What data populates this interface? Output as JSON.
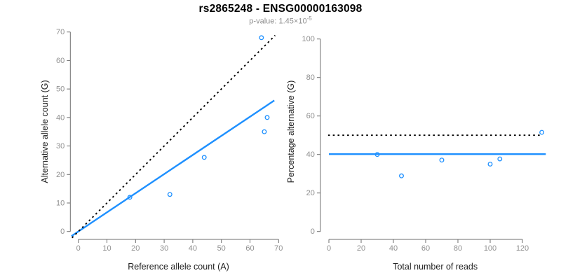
{
  "chart_data": {
    "type": "scatter",
    "title": "rs2865248 - ENSG00000163098",
    "p_value": {
      "prefix": "p-value: ",
      "base": "1.45×10",
      "exponent": "-5"
    },
    "point_color": "#1E90FF",
    "legend": "none",
    "grid": "off",
    "panels": [
      {
        "type": "scatter",
        "xlabel": "Reference allele count (A)",
        "ylabel": "Alternative allele count (G)",
        "xlim": [
          0,
          70
        ],
        "ylim": [
          0,
          70
        ],
        "xticks": [
          0,
          10,
          20,
          30,
          40,
          50,
          60,
          70
        ],
        "yticks": [
          0,
          10,
          20,
          30,
          40,
          50,
          60,
          70
        ],
        "points": [
          [
            18,
            12
          ],
          [
            32,
            13
          ],
          [
            44,
            26
          ],
          [
            64,
            68
          ],
          [
            65,
            35
          ],
          [
            66,
            40
          ]
        ],
        "lines": [
          {
            "name": "fit-line",
            "style": "solid",
            "color": "#1E90FF",
            "width": 2.4,
            "slope": 0.671,
            "from": [
              -2.4,
              -1.61
            ],
            "to": [
              68.5,
              45.98
            ]
          },
          {
            "name": "identity-line",
            "style": "dotted",
            "color": "#000000",
            "width": 1.9,
            "slope": 1,
            "from": [
              -2.2,
              -2.2
            ],
            "to": [
              68.8,
              68.8
            ]
          }
        ]
      },
      {
        "type": "scatter",
        "xlabel": "Total number of reads",
        "ylabel": "Percentage alternative (G)",
        "xlim": [
          0,
          120
        ],
        "ylim": [
          0,
          100
        ],
        "xticks": [
          0,
          20,
          40,
          60,
          80,
          100,
          120
        ],
        "yticks": [
          0,
          20,
          40,
          60,
          80,
          100
        ],
        "points": [
          [
            30,
            40
          ],
          [
            45,
            28.9
          ],
          [
            70,
            37.1
          ],
          [
            100,
            35
          ],
          [
            106,
            37.7
          ],
          [
            132,
            51.5
          ]
        ],
        "lines": [
          {
            "name": "fit-line",
            "style": "solid",
            "color": "#1E90FF",
            "width": 2.4,
            "level": 40.2,
            "from": [
              0,
              40.2
            ],
            "to": [
              134.5,
              40.2
            ]
          },
          {
            "name": "expected-50-percent-line",
            "style": "dotted",
            "color": "#000000",
            "width": 1.9,
            "level": 50,
            "from": [
              -0.5,
              50
            ],
            "to": [
              131,
              50
            ]
          }
        ]
      }
    ]
  },
  "colors": {
    "background": "#ffffff",
    "accent_blue": "#1E90FF",
    "reference_black": "#000000",
    "tick_label_gray": "#909090",
    "axis_gray": "#6e6e6e",
    "subtitle_gray": "#8f8f8f",
    "title_black": "#000000"
  }
}
